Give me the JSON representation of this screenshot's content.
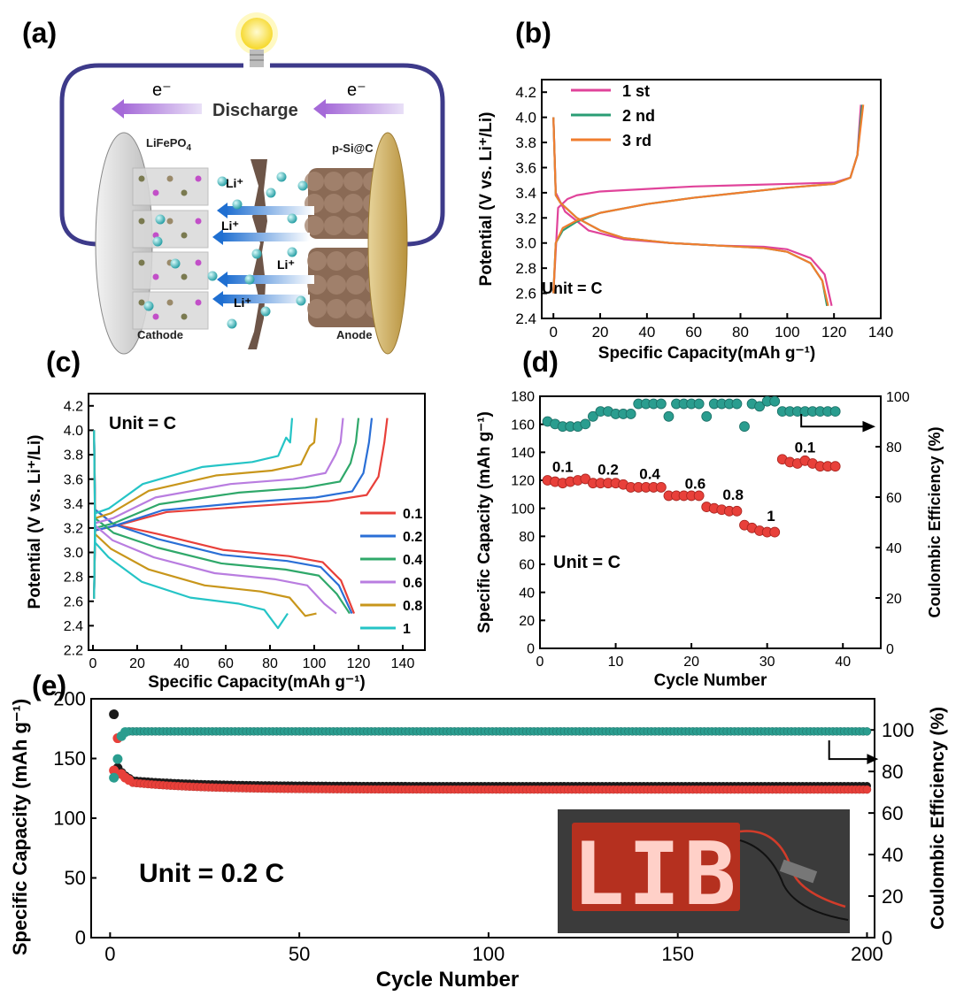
{
  "panels": {
    "a": {
      "label": "(a)",
      "electron": "e⁻",
      "discharge": "Discharge",
      "cathode_material": "LiFePO",
      "cathode_sub": "4",
      "anode_material": "p-Si@C",
      "ion": "Li⁺",
      "cathode": "Cathode",
      "anode": "Anode"
    },
    "b": {
      "label": "(b)",
      "unit": "Unit = C"
    },
    "c": {
      "label": "(c)",
      "unit": "Unit = C"
    },
    "d": {
      "label": "(d)",
      "unit": "Unit = C"
    },
    "e": {
      "label": "(e)",
      "unit": "Unit = 0.2 C",
      "photo_text": "LIB"
    }
  },
  "chart_data": [
    {
      "id": "b",
      "type": "line",
      "xlabel": "Specific Capacity(mAh g⁻¹)",
      "ylabel": "Potential (V vs. Li⁺/Li)",
      "xlim": [
        -5,
        140
      ],
      "ylim": [
        2.4,
        4.3
      ],
      "xticks": [
        0,
        20,
        40,
        60,
        80,
        100,
        120,
        140
      ],
      "yticks": [
        2.4,
        2.6,
        2.8,
        3.0,
        3.2,
        3.4,
        3.6,
        3.8,
        4.0,
        4.2
      ],
      "legend": {
        "position": "top-left",
        "entries": [
          "1 st",
          "2 nd",
          "3 rd"
        ]
      },
      "series": [
        {
          "name": "1 st",
          "color": "#e0439a",
          "charge": [
            [
              0,
              2.6
            ],
            [
              2,
              3.28
            ],
            [
              6,
              3.35
            ],
            [
              10,
              3.38
            ],
            [
              20,
              3.41
            ],
            [
              40,
              3.43
            ],
            [
              60,
              3.45
            ],
            [
              80,
              3.46
            ],
            [
              100,
              3.47
            ],
            [
              120,
              3.48
            ],
            [
              127,
              3.52
            ],
            [
              130,
              3.7
            ],
            [
              131.5,
              4.1
            ]
          ],
          "discharge": [
            [
              0,
              4.0
            ],
            [
              1,
              3.4
            ],
            [
              5,
              3.25
            ],
            [
              15,
              3.1
            ],
            [
              30,
              3.03
            ],
            [
              50,
              3.0
            ],
            [
              70,
              2.98
            ],
            [
              90,
              2.97
            ],
            [
              100,
              2.95
            ],
            [
              110,
              2.88
            ],
            [
              116,
              2.75
            ],
            [
              119,
              2.5
            ]
          ]
        },
        {
          "name": "2 nd",
          "color": "#2a9d74",
          "charge": [
            [
              0,
              2.6
            ],
            [
              1,
              3.0
            ],
            [
              4,
              3.1
            ],
            [
              10,
              3.17
            ],
            [
              20,
              3.24
            ],
            [
              40,
              3.31
            ],
            [
              60,
              3.36
            ],
            [
              80,
              3.4
            ],
            [
              100,
              3.44
            ],
            [
              120,
              3.47
            ],
            [
              127,
              3.52
            ],
            [
              130,
              3.7
            ],
            [
              132,
              4.1
            ]
          ],
          "discharge": [
            [
              0,
              4.0
            ],
            [
              1,
              3.38
            ],
            [
              3,
              3.32
            ],
            [
              10,
              3.2
            ],
            [
              20,
              3.1
            ],
            [
              30,
              3.04
            ],
            [
              50,
              3.0
            ],
            [
              70,
              2.98
            ],
            [
              90,
              2.96
            ],
            [
              100,
              2.93
            ],
            [
              110,
              2.84
            ],
            [
              115,
              2.7
            ],
            [
              117,
              2.5
            ]
          ]
        },
        {
          "name": "3 rd",
          "color": "#f07d2e",
          "charge": [
            [
              0,
              2.6
            ],
            [
              1,
              3.0
            ],
            [
              4,
              3.12
            ],
            [
              10,
              3.18
            ],
            [
              20,
              3.24
            ],
            [
              40,
              3.31
            ],
            [
              60,
              3.36
            ],
            [
              80,
              3.4
            ],
            [
              100,
              3.44
            ],
            [
              120,
              3.47
            ],
            [
              127,
              3.52
            ],
            [
              130,
              3.7
            ],
            [
              132.5,
              4.1
            ]
          ],
          "discharge": [
            [
              0,
              4.0
            ],
            [
              1,
              3.38
            ],
            [
              3,
              3.32
            ],
            [
              10,
              3.2
            ],
            [
              20,
              3.1
            ],
            [
              30,
              3.04
            ],
            [
              50,
              3.0
            ],
            [
              70,
              2.98
            ],
            [
              90,
              2.96
            ],
            [
              100,
              2.93
            ],
            [
              110,
              2.84
            ],
            [
              115,
              2.7
            ],
            [
              117.5,
              2.5
            ]
          ]
        }
      ]
    },
    {
      "id": "c",
      "type": "line",
      "xlabel": "Specific Capacity(mAh g⁻¹)",
      "ylabel": "Potential (V vs. Li⁺/Li)",
      "xlim": [
        -2,
        150
      ],
      "ylim": [
        2.2,
        4.3
      ],
      "xticks": [
        0,
        20,
        40,
        60,
        80,
        100,
        120,
        140
      ],
      "yticks": [
        2.2,
        2.4,
        2.6,
        2.8,
        3.0,
        3.2,
        3.4,
        3.6,
        3.8,
        4.0,
        4.2
      ],
      "legend": {
        "position": "bottom-right",
        "entries": [
          "0.1",
          "0.2",
          "0.4",
          "0.6",
          "0.8",
          "1"
        ]
      },
      "series": [
        {
          "name": "0.1",
          "color": "#e8403a",
          "cap_c": 133,
          "cap_d": 118,
          "plat_c": 3.42,
          "plat_d": 2.97,
          "start_c": 3.18,
          "start_d": 3.35
        },
        {
          "name": "0.2",
          "color": "#2a6fd6",
          "cap_c": 126,
          "cap_d": 117,
          "plat_c": 3.45,
          "plat_d": 2.93,
          "start_c": 3.18,
          "start_d": 3.35
        },
        {
          "name": "0.4",
          "color": "#2fa86a",
          "cap_c": 120,
          "cap_d": 116,
          "plat_c": 3.53,
          "plat_d": 2.86,
          "start_c": 3.2,
          "start_d": 3.28
        },
        {
          "name": "0.6",
          "color": "#b97de0",
          "cap_c": 113,
          "cap_d": 110,
          "plat_c": 3.6,
          "plat_d": 2.78,
          "start_c": 3.24,
          "start_d": 3.22
        },
        {
          "name": "0.8",
          "color": "#c8961b",
          "cap_c": 101,
          "cap_d": 101,
          "plat_c": 3.67,
          "plat_d": 2.68,
          "start_c": 3.28,
          "start_d": 3.15
        },
        {
          "name": "1",
          "color": "#25c4c6",
          "cap_c": 90,
          "cap_d": 88,
          "plat_c": 3.74,
          "plat_d": 2.58,
          "start_c": 3.32,
          "start_d": 3.08
        }
      ]
    },
    {
      "id": "d",
      "type": "scatter",
      "xlabel": "Cycle Number",
      "ylabel": "Specific Capacity (mAh g⁻¹)",
      "y2label": "Coulombic Efficiency (%)",
      "xlim": [
        0,
        45
      ],
      "ylim": [
        0,
        180
      ],
      "y2lim": [
        0,
        100
      ],
      "xticks": [
        0,
        10,
        20,
        30,
        40
      ],
      "yticks": [
        0,
        20,
        40,
        60,
        80,
        100,
        120,
        140,
        160,
        180
      ],
      "y2ticks": [
        0,
        20,
        40,
        60,
        80,
        100
      ],
      "rate_labels": [
        {
          "text": "0.1",
          "x": 3,
          "y": 126
        },
        {
          "text": "0.2",
          "x": 9,
          "y": 124
        },
        {
          "text": "0.4",
          "x": 14.5,
          "y": 121
        },
        {
          "text": "0.6",
          "x": 20.5,
          "y": 114
        },
        {
          "text": "0.8",
          "x": 25.5,
          "y": 106
        },
        {
          "text": "1",
          "x": 30.5,
          "y": 91
        },
        {
          "text": "0.1",
          "x": 35,
          "y": 140
        }
      ],
      "capacity": {
        "color": "#e8403a",
        "values": [
          120,
          119,
          118,
          119,
          120,
          121,
          118,
          118,
          118,
          118,
          117,
          115,
          115,
          115,
          115,
          115,
          109,
          109,
          109,
          109,
          109,
          101,
          100,
          99,
          98,
          98,
          88,
          86,
          84,
          83,
          83,
          135,
          133,
          132,
          134,
          132,
          130,
          130,
          130
        ]
      },
      "efficiency": {
        "color": "#2a9d8f",
        "values": [
          90,
          89,
          88,
          88,
          88,
          89,
          92,
          94,
          94,
          93,
          93,
          93,
          97,
          97,
          97,
          97,
          92,
          97,
          97,
          97,
          97,
          92,
          97,
          97,
          97,
          97,
          88,
          97,
          96,
          98,
          98,
          94,
          94,
          94,
          94,
          94,
          94,
          94,
          94
        ]
      }
    },
    {
      "id": "e",
      "type": "scatter",
      "xlabel": "Cycle Number",
      "ylabel": "Specific Capacity (mAh g⁻¹)",
      "y2label": "Coulombic Efficiency (%)",
      "xlim": [
        -5,
        202
      ],
      "ylim": [
        0,
        200
      ],
      "y2lim": [
        0,
        115
      ],
      "xticks": [
        0,
        50,
        100,
        150,
        200
      ],
      "yticks": [
        0,
        50,
        100,
        150,
        200
      ],
      "y2ticks": [
        0,
        20,
        40,
        60,
        80,
        100
      ],
      "charge": {
        "color": "#1a1a1a",
        "first": [
          [
            1,
            187
          ],
          [
            2,
            142
          ],
          [
            3,
            138
          ],
          [
            4,
            135
          ],
          [
            5,
            133
          ]
        ],
        "plateau_start": 132,
        "plateau_end": 127
      },
      "discharge": {
        "color": "#e8403a",
        "first": [
          [
            1,
            140
          ],
          [
            2,
            167
          ],
          [
            3,
            137
          ],
          [
            4,
            134
          ],
          [
            5,
            132
          ]
        ],
        "plateau_start": 130,
        "plateau_end": 124
      },
      "efficiency": {
        "color": "#2a9d8f",
        "first": [
          [
            1,
            77
          ],
          [
            2,
            86
          ],
          [
            3,
            97
          ],
          [
            4,
            99
          ]
        ],
        "plateau": 99.3
      }
    }
  ]
}
